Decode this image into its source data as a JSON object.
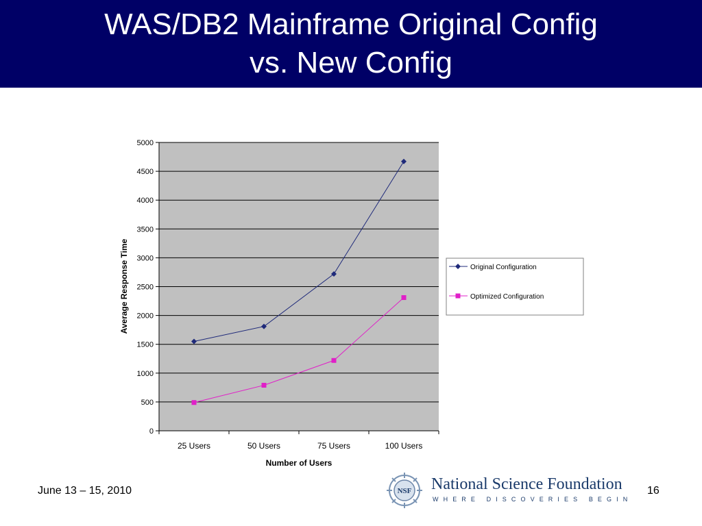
{
  "slide": {
    "title_line1": "WAS/DB2 Mainframe Original Config",
    "title_line2": "vs. New Config",
    "footer_date": "June 13 – 15, 2010",
    "page_number": "16"
  },
  "logo": {
    "name": "National Science Foundation",
    "tagline": "WHERE DISCOVERIES BEGIN",
    "emblem_text": "NSF"
  },
  "colors": {
    "title_bar": "#000066",
    "plot_bg": "#c0c0c0",
    "original_series": "#1f2a7a",
    "optimized_series": "#e020c8",
    "logo_text": "#1a3a6a"
  },
  "chart_data": {
    "type": "line",
    "title": "",
    "xlabel": "Number of Users",
    "ylabel": "Average Response Time",
    "categories": [
      "25 Users",
      "50 Users",
      "75 Users",
      "100 Users"
    ],
    "ylim": [
      0,
      5000
    ],
    "yticks": [
      0,
      500,
      1000,
      1500,
      2000,
      2500,
      3000,
      3500,
      4000,
      4500,
      5000
    ],
    "grid": true,
    "legend_position": "right",
    "series": [
      {
        "name": "Original Configuration",
        "values": [
          1550,
          1810,
          2720,
          4670
        ],
        "marker": "diamond"
      },
      {
        "name": "Optimized Configuration",
        "values": [
          490,
          790,
          1220,
          2310
        ],
        "marker": "square"
      }
    ]
  }
}
